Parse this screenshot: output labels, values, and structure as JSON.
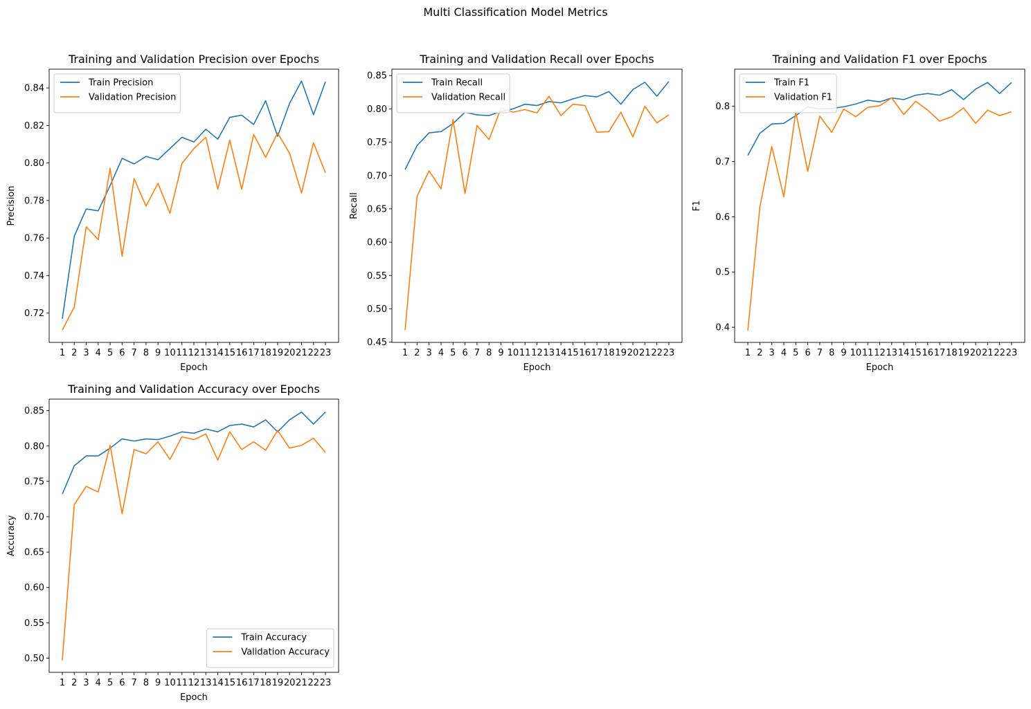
{
  "figure": {
    "suptitle": "Multi Classification Model Metrics"
  },
  "chart_data": [
    {
      "type": "line",
      "title": "Training and Validation Precision over Epochs",
      "xlabel": "Epoch",
      "ylabel": "Precision",
      "x": [
        1,
        2,
        3,
        4,
        5,
        6,
        7,
        8,
        9,
        10,
        11,
        12,
        13,
        14,
        15,
        16,
        17,
        18,
        19,
        20,
        21,
        22,
        23
      ],
      "xticklabels": [
        "1",
        "2",
        "3",
        "4",
        "5",
        "6",
        "7",
        "8",
        "9",
        "10",
        "11",
        "12",
        "13",
        "14",
        "15",
        "16",
        "17",
        "18",
        "19",
        "20",
        "21",
        "22",
        "23"
      ],
      "yticks": [
        0.72,
        0.74,
        0.76,
        0.78,
        0.8,
        0.82,
        0.84
      ],
      "ytick_decimals": 2,
      "ylim": [
        0.7044,
        0.85
      ],
      "legend_loc": "upper-left",
      "series": [
        {
          "name": "Train Precision",
          "color": "#1f77b4",
          "values": [
            0.717,
            0.761,
            0.7755,
            0.7745,
            0.788,
            0.8025,
            0.7995,
            0.8035,
            0.8017,
            0.8077,
            0.8137,
            0.8112,
            0.818,
            0.8127,
            0.8243,
            0.8255,
            0.8205,
            0.8332,
            0.8142,
            0.8317,
            0.8437,
            0.8257,
            0.8433
          ]
        },
        {
          "name": "Validation Precision",
          "color": "#ff7f0e",
          "values": [
            0.711,
            0.7232,
            0.766,
            0.7592,
            0.7972,
            0.7503,
            0.7917,
            0.777,
            0.7892,
            0.7732,
            0.7997,
            0.8077,
            0.8137,
            0.786,
            0.8122,
            0.786,
            0.8152,
            0.803,
            0.816,
            0.8052,
            0.784,
            0.8108,
            0.7948
          ]
        }
      ]
    },
    {
      "type": "line",
      "title": "Training and Validation Recall over Epochs",
      "xlabel": "Epoch",
      "ylabel": "Recall",
      "x": [
        1,
        2,
        3,
        4,
        5,
        6,
        7,
        8,
        9,
        10,
        11,
        12,
        13,
        14,
        15,
        16,
        17,
        18,
        19,
        20,
        21,
        22,
        23
      ],
      "xticklabels": [
        "1",
        "2",
        "3",
        "4",
        "5",
        "6",
        "7",
        "8",
        "9",
        "10",
        "11",
        "12",
        "13",
        "14",
        "15",
        "16",
        "17",
        "18",
        "19",
        "20",
        "21",
        "22",
        "23"
      ],
      "yticks": [
        0.45,
        0.5,
        0.55,
        0.6,
        0.65,
        0.7,
        0.75,
        0.8,
        0.85
      ],
      "ytick_decimals": 2,
      "ylim": [
        0.4496,
        0.8596
      ],
      "legend_loc": "upper-left",
      "series": [
        {
          "name": "Train Recall",
          "color": "#1f77b4",
          "values": [
            0.709,
            0.745,
            0.764,
            0.766,
            0.778,
            0.795,
            0.791,
            0.79,
            0.796,
            0.8,
            0.807,
            0.805,
            0.811,
            0.809,
            0.815,
            0.82,
            0.818,
            0.826,
            0.807,
            0.829,
            0.84,
            0.819,
            0.841
          ]
        },
        {
          "name": "Validation Recall",
          "color": "#ff7f0e",
          "values": [
            0.468,
            0.669,
            0.707,
            0.68,
            0.784,
            0.673,
            0.775,
            0.754,
            0.801,
            0.795,
            0.799,
            0.794,
            0.819,
            0.79,
            0.807,
            0.805,
            0.765,
            0.766,
            0.795,
            0.758,
            0.804,
            0.779,
            0.791
          ]
        }
      ]
    },
    {
      "type": "line",
      "title": "Training and Validation F1 over Epochs",
      "xlabel": "Epoch",
      "ylabel": "F1",
      "x": [
        1,
        2,
        3,
        4,
        5,
        6,
        7,
        8,
        9,
        10,
        11,
        12,
        13,
        14,
        15,
        16,
        17,
        18,
        19,
        20,
        21,
        22,
        23
      ],
      "xticklabels": [
        "1",
        "2",
        "3",
        "4",
        "5",
        "6",
        "7",
        "8",
        "9",
        "10",
        "11",
        "12",
        "13",
        "14",
        "15",
        "16",
        "17",
        "18",
        "19",
        "20",
        "21",
        "22",
        "23"
      ],
      "yticks": [
        0.4,
        0.5,
        0.6,
        0.7,
        0.8
      ],
      "ytick_decimals": 1,
      "ylim": [
        0.3725,
        0.8671
      ],
      "legend_loc": "upper-left",
      "series": [
        {
          "name": "Train F1",
          "color": "#1f77b4",
          "values": [
            0.711,
            0.751,
            0.768,
            0.769,
            0.783,
            0.799,
            0.795,
            0.796,
            0.799,
            0.804,
            0.811,
            0.808,
            0.815,
            0.812,
            0.82,
            0.823,
            0.82,
            0.83,
            0.812,
            0.831,
            0.843,
            0.823,
            0.843
          ]
        },
        {
          "name": "Validation F1",
          "color": "#ff7f0e",
          "values": [
            0.394,
            0.617,
            0.727,
            0.636,
            0.79,
            0.682,
            0.782,
            0.753,
            0.795,
            0.781,
            0.798,
            0.801,
            0.815,
            0.785,
            0.809,
            0.793,
            0.773,
            0.781,
            0.797,
            0.769,
            0.793,
            0.783,
            0.79
          ]
        }
      ]
    },
    {
      "type": "line",
      "title": "Training and Validation Accuracy over Epochs",
      "xlabel": "Epoch",
      "ylabel": "Accuracy",
      "x": [
        1,
        2,
        3,
        4,
        5,
        6,
        7,
        8,
        9,
        10,
        11,
        12,
        13,
        14,
        15,
        16,
        17,
        18,
        19,
        20,
        21,
        22,
        23
      ],
      "xticklabels": [
        "1",
        "2",
        "3",
        "4",
        "5",
        "6",
        "7",
        "8",
        "9",
        "10",
        "11",
        "12",
        "13",
        "14",
        "15",
        "16",
        "17",
        "18",
        "19",
        "20",
        "21",
        "22",
        "23"
      ],
      "yticks": [
        0.5,
        0.55,
        0.6,
        0.65,
        0.7,
        0.75,
        0.8,
        0.85
      ],
      "ytick_decimals": 2,
      "ylim": [
        0.4799,
        0.8663
      ],
      "legend_loc": "lower-right",
      "series": [
        {
          "name": "Train Accuracy",
          "color": "#1f77b4",
          "values": [
            0.732,
            0.772,
            0.786,
            0.786,
            0.797,
            0.81,
            0.807,
            0.81,
            0.809,
            0.814,
            0.82,
            0.818,
            0.824,
            0.82,
            0.829,
            0.831,
            0.827,
            0.837,
            0.82,
            0.837,
            0.848,
            0.831,
            0.848
          ]
        },
        {
          "name": "Validation Accuracy",
          "color": "#ff7f0e",
          "values": [
            0.497,
            0.717,
            0.743,
            0.735,
            0.801,
            0.704,
            0.795,
            0.789,
            0.806,
            0.781,
            0.813,
            0.809,
            0.817,
            0.78,
            0.82,
            0.795,
            0.806,
            0.794,
            0.822,
            0.797,
            0.801,
            0.811,
            0.791
          ]
        }
      ]
    }
  ]
}
